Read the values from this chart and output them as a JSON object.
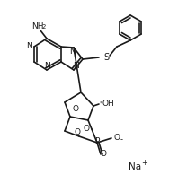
{
  "background_color": "#ffffff",
  "line_color": "#1a1a1a",
  "line_width": 1.2,
  "fig_width": 1.88,
  "fig_height": 2.04,
  "dpi": 100,
  "na_text": "Na",
  "na_superscript": "+",
  "nh2_label": "NH",
  "nh2_subscript": "2",
  "oh_label": "OH",
  "n_label": "N",
  "o_label": "O",
  "s_label": "S",
  "p_label": "P",
  "ominus_label": "O",
  "ominus_sym": "-"
}
